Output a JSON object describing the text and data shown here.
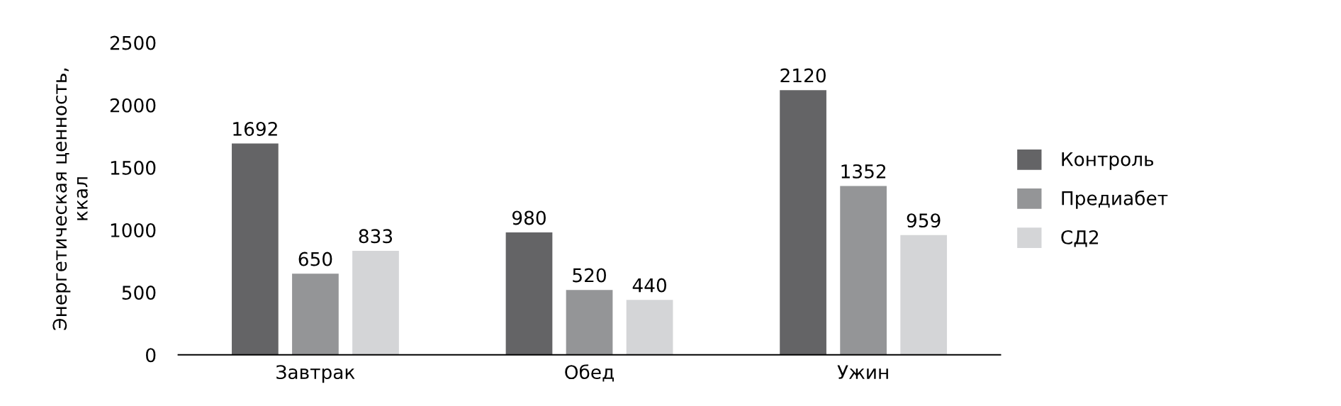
{
  "chart_data": {
    "type": "bar",
    "ylabel": "Энергетическая ценность,\nккал",
    "categories": [
      "Завтрак",
      "Обед",
      "Ужин"
    ],
    "series": [
      {
        "name": "Контроль",
        "color": "#646466",
        "values": [
          1692,
          980,
          2120
        ]
      },
      {
        "name": "Предиабет",
        "color": "#949597",
        "values": [
          650,
          520,
          1352
        ]
      },
      {
        "name": "СД2",
        "color": "#d4d5d7",
        "values": [
          833,
          440,
          959
        ]
      }
    ],
    "ylim": [
      0,
      2500
    ],
    "yticks": [
      0,
      500,
      1000,
      1500,
      2000,
      2500
    ],
    "grid": false,
    "legend": "right",
    "data_labels": true
  }
}
